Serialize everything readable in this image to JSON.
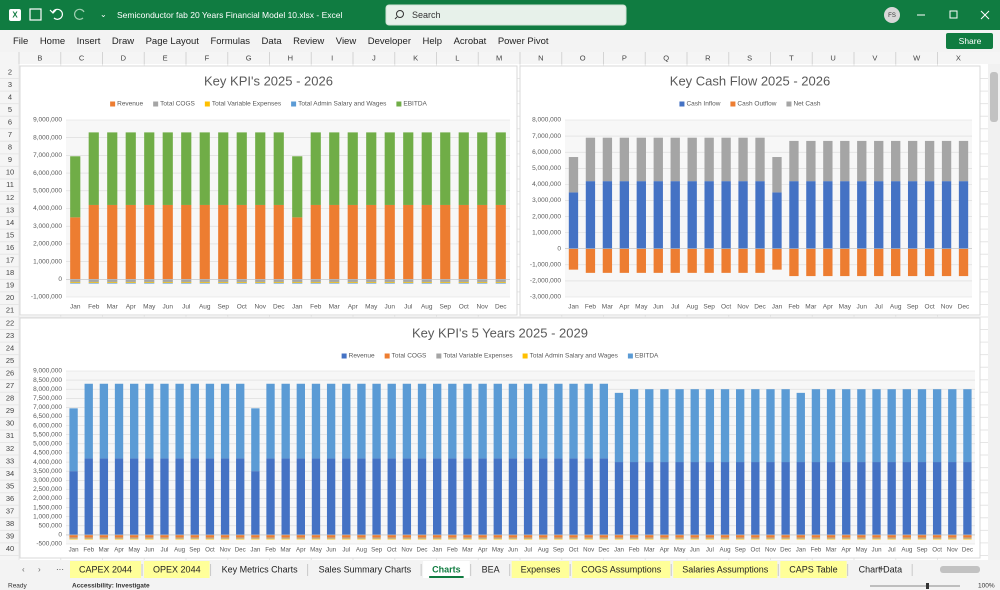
{
  "title_bar": {
    "file_name": "Semiconductor fab 20 Years Financial Model 10.xlsx  -  Excel",
    "search": "Search",
    "user": "FS"
  },
  "menu": [
    "File",
    "Home",
    "Insert",
    "Draw",
    "Page Layout",
    "Formulas",
    "Data",
    "Review",
    "View",
    "Developer",
    "Help",
    "Acrobat",
    "Power Pivot"
  ],
  "share": "Share",
  "columns": [
    "B",
    "C",
    "D",
    "E",
    "F",
    "G",
    "H",
    "I",
    "J",
    "K",
    "L",
    "M",
    "N",
    "O",
    "P",
    "Q",
    "R",
    "S",
    "T",
    "U",
    "V",
    "W",
    "X"
  ],
  "rows": [
    2,
    3,
    4,
    5,
    6,
    7,
    8,
    9,
    10,
    11,
    12,
    13,
    14,
    15,
    16,
    17,
    18,
    19,
    20,
    21,
    22,
    23,
    24,
    25,
    26,
    27,
    28,
    29,
    30,
    31,
    32,
    33,
    34,
    35,
    36,
    37,
    38,
    39,
    40
  ],
  "sheet_tabs": [
    {
      "label": "CAPEX 2044",
      "highlight": true
    },
    {
      "label": "OPEX 2044",
      "highlight": true
    },
    {
      "label": "Key Metrics Charts",
      "highlight": false
    },
    {
      "label": "Sales Summary Charts",
      "highlight": false
    },
    {
      "label": "Charts",
      "highlight": false
    },
    {
      "label": "BEA",
      "highlight": false
    },
    {
      "label": "Expenses",
      "highlight": true
    },
    {
      "label": "COGS Assumptions",
      "highlight": true
    },
    {
      "label": "Salaries Assumptions",
      "highlight": true
    },
    {
      "label": "CAPS Table",
      "highlight": true
    },
    {
      "label": "Chart Data",
      "highlight": false
    }
  ],
  "active_tab": 4,
  "status_bar": {
    "mode": "Ready",
    "accessibility": "Accessibility: Investigate",
    "zoom": "100%"
  },
  "chart_data": [
    {
      "type": "bar",
      "stacked": true,
      "grid": true,
      "legend": "top",
      "title": "Key KPI's 2025 - 2026",
      "categories": [
        "Jan",
        "Feb",
        "Mar",
        "Apr",
        "May",
        "Jun",
        "Jul",
        "Aug",
        "Sep",
        "Oct",
        "Nov",
        "Dec",
        "Jan",
        "Feb",
        "Mar",
        "Apr",
        "May",
        "Jun",
        "Jul",
        "Aug",
        "Sep",
        "Oct",
        "Nov",
        "Dec"
      ],
      "ylim": [
        -1000000,
        9000000
      ],
      "yticks": [
        {
          "value": -1000000,
          "label": "-1,000,000"
        },
        0,
        {
          "value": 1000000,
          "label": "1,000,000"
        },
        {
          "value": 2000000,
          "label": "2,000,000"
        },
        {
          "value": 3000000,
          "label": "3,000,000"
        },
        {
          "value": 4000000,
          "label": "4,000,000"
        },
        {
          "value": 5000000,
          "label": "5,000,000"
        },
        {
          "value": 6000000,
          "label": "6,000,000"
        },
        {
          "value": 7000000,
          "label": "7,000,000"
        },
        {
          "value": 8000000,
          "label": "8,000,000"
        },
        {
          "value": 9000000,
          "label": "9,000,000"
        }
      ],
      "series": [
        {
          "name": "Revenue",
          "color": "#ed7d31",
          "values": [
            3500000,
            4200000,
            4200000,
            4200000,
            4200000,
            4200000,
            4200000,
            4200000,
            4200000,
            4200000,
            4200000,
            4200000,
            3500000,
            4200000,
            4200000,
            4200000,
            4200000,
            4200000,
            4200000,
            4200000,
            4200000,
            4200000,
            4200000,
            4200000
          ]
        },
        {
          "name": "Total COGS",
          "color": "#a5a5a5",
          "values": [
            -150000,
            -150000,
            -150000,
            -150000,
            -150000,
            -150000,
            -150000,
            -150000,
            -150000,
            -150000,
            -150000,
            -150000,
            -150000,
            -150000,
            -150000,
            -150000,
            -150000,
            -150000,
            -150000,
            -150000,
            -150000,
            -150000,
            -150000,
            -150000
          ]
        },
        {
          "name": "Total Variable Expenses",
          "color": "#ffc000",
          "values": [
            -50000,
            -50000,
            -50000,
            -50000,
            -50000,
            -50000,
            -50000,
            -50000,
            -50000,
            -50000,
            -50000,
            -50000,
            -50000,
            -50000,
            -50000,
            -50000,
            -50000,
            -50000,
            -50000,
            -50000,
            -50000,
            -50000,
            -50000,
            -50000
          ]
        },
        {
          "name": "Total Admin Salary and Wages",
          "color": "#5b9bd5",
          "values": [
            -40000,
            -40000,
            -40000,
            -40000,
            -40000,
            -40000,
            -40000,
            -40000,
            -40000,
            -40000,
            -40000,
            -40000,
            -40000,
            -40000,
            -40000,
            -40000,
            -40000,
            -40000,
            -40000,
            -40000,
            -40000,
            -40000,
            -40000,
            -40000
          ]
        },
        {
          "name": "EBITDA",
          "color": "#70ad47",
          "values": [
            3450000,
            4100000,
            4100000,
            4100000,
            4100000,
            4100000,
            4100000,
            4100000,
            4100000,
            4100000,
            4100000,
            4100000,
            3450000,
            4100000,
            4100000,
            4100000,
            4100000,
            4100000,
            4100000,
            4100000,
            4100000,
            4100000,
            4100000,
            4100000
          ]
        }
      ]
    },
    {
      "type": "bar",
      "stacked": true,
      "grid": true,
      "legend": "top",
      "title": "Key Cash Flow 2025 - 2026",
      "categories": [
        "Jan",
        "Feb",
        "Mar",
        "Apr",
        "May",
        "Jun",
        "Jul",
        "Aug",
        "Sep",
        "Oct",
        "Nov",
        "Dec",
        "Jan",
        "Feb",
        "Mar",
        "Apr",
        "May",
        "Jun",
        "Jul",
        "Aug",
        "Sep",
        "Oct",
        "Nov",
        "Dec"
      ],
      "ylim": [
        -3000000,
        8000000
      ],
      "yticks": [
        {
          "value": -3000000,
          "label": "-3,000,000"
        },
        {
          "value": -2000000,
          "label": "-2,000,000"
        },
        {
          "value": -1000000,
          "label": "-1,000,000"
        },
        0,
        {
          "value": 1000000,
          "label": "1,000,000"
        },
        {
          "value": 2000000,
          "label": "2,000,000"
        },
        {
          "value": 3000000,
          "label": "3,000,000"
        },
        {
          "value": 4000000,
          "label": "4,000,000"
        },
        {
          "value": 5000000,
          "label": "5,000,000"
        },
        {
          "value": 6000000,
          "label": "6,000,000"
        },
        {
          "value": 7000000,
          "label": "7,000,000"
        },
        {
          "value": 8000000,
          "label": "8,000,000"
        }
      ],
      "series": [
        {
          "name": "Cash Inflow",
          "color": "#4472c4",
          "values": [
            3500000,
            4200000,
            4200000,
            4200000,
            4200000,
            4200000,
            4200000,
            4200000,
            4200000,
            4200000,
            4200000,
            4200000,
            3500000,
            4200000,
            4200000,
            4200000,
            4200000,
            4200000,
            4200000,
            4200000,
            4200000,
            4200000,
            4200000,
            4200000
          ]
        },
        {
          "name": "Cash Outflow",
          "color": "#ed7d31",
          "values": [
            -1300000,
            -1500000,
            -1500000,
            -1500000,
            -1500000,
            -1500000,
            -1500000,
            -1500000,
            -1500000,
            -1500000,
            -1500000,
            -1500000,
            -1300000,
            -1700000,
            -1700000,
            -1700000,
            -1700000,
            -1700000,
            -1700000,
            -1700000,
            -1700000,
            -1700000,
            -1700000,
            -1700000
          ]
        },
        {
          "name": "Net Cash",
          "color": "#a5a5a5",
          "values": [
            2200000,
            2700000,
            2700000,
            2700000,
            2700000,
            2700000,
            2700000,
            2700000,
            2700000,
            2700000,
            2700000,
            2700000,
            2200000,
            2500000,
            2500000,
            2500000,
            2500000,
            2500000,
            2500000,
            2500000,
            2500000,
            2500000,
            2500000,
            2500000
          ]
        }
      ]
    },
    {
      "type": "bar",
      "stacked": true,
      "grid": true,
      "legend": "top",
      "title": "Key KPI's 5 Years 2025 - 2029",
      "categories": [
        "Jan",
        "Feb",
        "Mar",
        "Apr",
        "May",
        "Jun",
        "Jul",
        "Aug",
        "Sep",
        "Oct",
        "Nov",
        "Dec",
        "Jan",
        "Feb",
        "Mar",
        "Apr",
        "May",
        "Jun",
        "Jul",
        "Aug",
        "Sep",
        "Oct",
        "Nov",
        "Dec",
        "Jan",
        "Feb",
        "Mar",
        "Apr",
        "May",
        "Jun",
        "Jul",
        "Aug",
        "Sep",
        "Oct",
        "Nov",
        "Dec",
        "Jan",
        "Feb",
        "Mar",
        "Apr",
        "May",
        "Jun",
        "Jul",
        "Aug",
        "Sep",
        "Oct",
        "Nov",
        "Dec",
        "Jan",
        "Feb",
        "Mar",
        "Apr",
        "May",
        "Jun",
        "Jul",
        "Aug",
        "Sep",
        "Oct",
        "Nov",
        "Dec"
      ],
      "ylim": [
        -500000,
        9000000
      ],
      "yticks": [
        {
          "value": -500000,
          "label": "-500,000"
        },
        0,
        {
          "value": 500000,
          "label": "500,000"
        },
        {
          "value": 1000000,
          "label": "1,000,000"
        },
        {
          "value": 1500000,
          "label": "1,500,000"
        },
        {
          "value": 2000000,
          "label": "2,000,000"
        },
        {
          "value": 2500000,
          "label": "2,500,000"
        },
        {
          "value": 3000000,
          "label": "3,000,000"
        },
        {
          "value": 3500000,
          "label": "3,500,000"
        },
        {
          "value": 4000000,
          "label": "4,000,000"
        },
        {
          "value": 4500000,
          "label": "4,500,000"
        },
        {
          "value": 5000000,
          "label": "5,000,000"
        },
        {
          "value": 5500000,
          "label": "5,500,000"
        },
        {
          "value": 6000000,
          "label": "6,000,000"
        },
        {
          "value": 6500000,
          "label": "6,500,000"
        },
        {
          "value": 7000000,
          "label": "7,000,000"
        },
        {
          "value": 7500000,
          "label": "7,500,000"
        },
        {
          "value": 8000000,
          "label": "8,000,000"
        },
        {
          "value": 8500000,
          "label": "8,500,000"
        },
        {
          "value": 9000000,
          "label": "9,000,000"
        }
      ],
      "series": [
        {
          "name": "Revenue",
          "color": "#4472c4",
          "values": [
            3500000,
            4200000,
            4200000,
            4200000,
            4200000,
            4200000,
            4200000,
            4200000,
            4200000,
            4200000,
            4200000,
            4200000,
            3500000,
            4200000,
            4200000,
            4200000,
            4200000,
            4200000,
            4200000,
            4200000,
            4200000,
            4200000,
            4200000,
            4200000,
            4200000,
            4200000,
            4200000,
            4200000,
            4200000,
            4200000,
            4200000,
            4200000,
            4200000,
            4200000,
            4200000,
            4200000,
            4000000,
            4000000,
            4000000,
            4000000,
            4000000,
            4000000,
            4000000,
            4000000,
            4000000,
            4000000,
            4000000,
            4000000,
            4000000,
            4000000,
            4000000,
            4000000,
            4000000,
            4000000,
            4000000,
            4000000,
            4000000,
            4000000,
            4000000,
            4000000
          ]
        },
        {
          "name": "Total COGS",
          "color": "#ed7d31",
          "values": [
            -150000,
            -150000,
            -150000,
            -150000,
            -150000,
            -150000,
            -150000,
            -150000,
            -150000,
            -150000,
            -150000,
            -150000,
            -150000,
            -150000,
            -150000,
            -150000,
            -150000,
            -150000,
            -150000,
            -150000,
            -150000,
            -150000,
            -150000,
            -150000,
            -150000,
            -150000,
            -150000,
            -150000,
            -150000,
            -150000,
            -150000,
            -150000,
            -150000,
            -150000,
            -150000,
            -150000,
            -150000,
            -150000,
            -150000,
            -150000,
            -150000,
            -150000,
            -150000,
            -150000,
            -150000,
            -150000,
            -150000,
            -150000,
            -150000,
            -150000,
            -150000,
            -150000,
            -150000,
            -150000,
            -150000,
            -150000,
            -150000,
            -150000,
            -150000,
            -150000
          ]
        },
        {
          "name": "Total Variable Expenses",
          "color": "#a5a5a5",
          "values": [
            -60000,
            -60000,
            -60000,
            -60000,
            -60000,
            -60000,
            -60000,
            -60000,
            -60000,
            -60000,
            -60000,
            -60000,
            -60000,
            -60000,
            -60000,
            -60000,
            -60000,
            -60000,
            -60000,
            -60000,
            -60000,
            -60000,
            -60000,
            -60000,
            -60000,
            -60000,
            -60000,
            -60000,
            -60000,
            -60000,
            -60000,
            -60000,
            -60000,
            -60000,
            -60000,
            -60000,
            -60000,
            -60000,
            -60000,
            -60000,
            -60000,
            -60000,
            -60000,
            -60000,
            -60000,
            -60000,
            -60000,
            -60000,
            -60000,
            -60000,
            -60000,
            -60000,
            -60000,
            -60000,
            -60000,
            -60000,
            -60000,
            -60000,
            -60000,
            -60000
          ]
        },
        {
          "name": "Total Admin Salary and Wages",
          "color": "#ffc000",
          "values": [
            -40000,
            -40000,
            -40000,
            -40000,
            -40000,
            -40000,
            -40000,
            -40000,
            -40000,
            -40000,
            -40000,
            -40000,
            -40000,
            -40000,
            -40000,
            -40000,
            -40000,
            -40000,
            -40000,
            -40000,
            -40000,
            -40000,
            -40000,
            -40000,
            -40000,
            -40000,
            -40000,
            -40000,
            -40000,
            -40000,
            -40000,
            -40000,
            -40000,
            -40000,
            -40000,
            -40000,
            -40000,
            -40000,
            -40000,
            -40000,
            -40000,
            -40000,
            -40000,
            -40000,
            -40000,
            -40000,
            -40000,
            -40000,
            -40000,
            -40000,
            -40000,
            -40000,
            -40000,
            -40000,
            -40000,
            -40000,
            -40000,
            -40000,
            -40000,
            -40000
          ]
        },
        {
          "name": "EBITDA",
          "color": "#5b9bd5",
          "values": [
            3450000,
            4100000,
            4100000,
            4100000,
            4100000,
            4100000,
            4100000,
            4100000,
            4100000,
            4100000,
            4100000,
            4100000,
            3450000,
            4100000,
            4100000,
            4100000,
            4100000,
            4100000,
            4100000,
            4100000,
            4100000,
            4100000,
            4100000,
            4100000,
            4100000,
            4100000,
            4100000,
            4100000,
            4100000,
            4100000,
            4100000,
            4100000,
            4100000,
            4100000,
            4100000,
            4100000,
            3800000,
            4000000,
            4000000,
            4000000,
            4000000,
            4000000,
            4000000,
            4000000,
            4000000,
            4000000,
            4000000,
            4000000,
            3800000,
            4000000,
            4000000,
            4000000,
            4000000,
            4000000,
            4000000,
            4000000,
            4000000,
            4000000,
            4000000,
            4000000
          ]
        }
      ]
    }
  ]
}
